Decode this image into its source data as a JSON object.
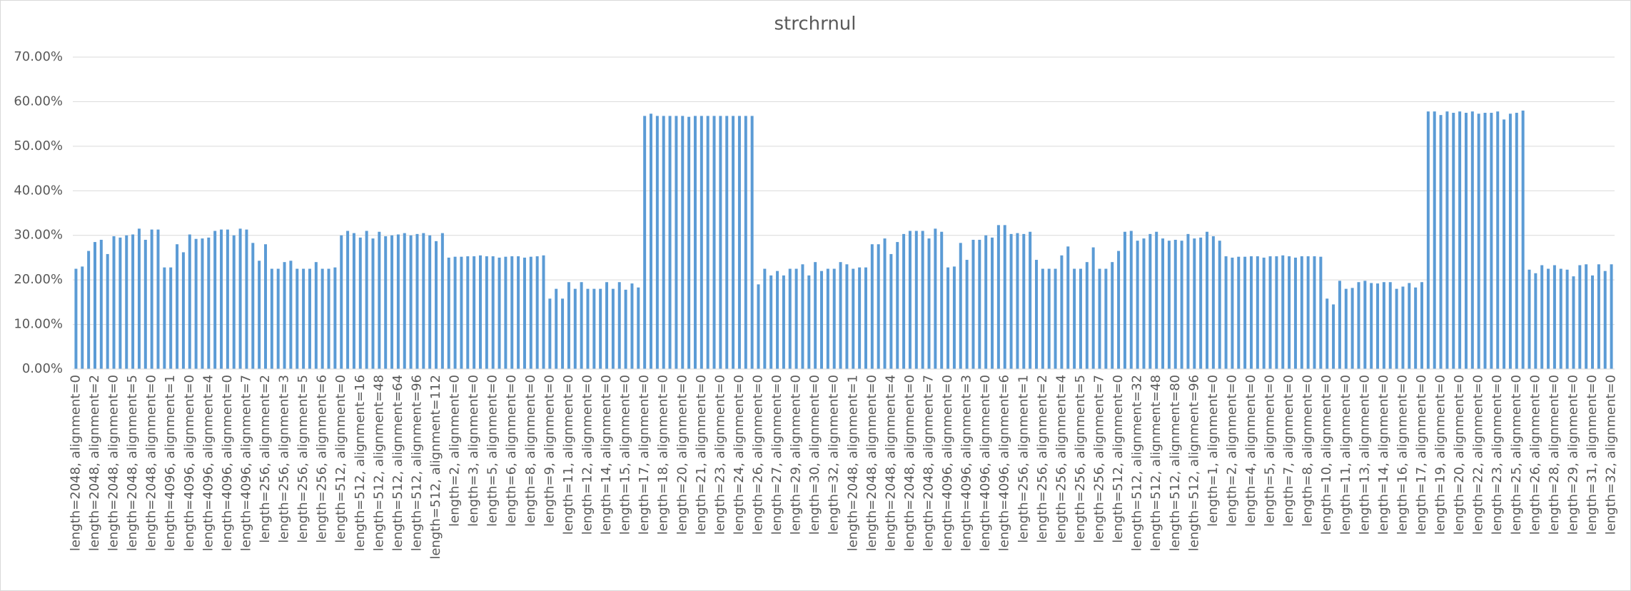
{
  "chart_data": {
    "type": "bar",
    "title": "strchrnul",
    "color": "#5b9bd5",
    "grid": true,
    "ylim": [
      0,
      70
    ],
    "yticks": [
      {
        "value": 0,
        "label": "0.00%"
      },
      {
        "value": 10,
        "label": "10.00%"
      },
      {
        "value": 20,
        "label": "20.00%"
      },
      {
        "value": 30,
        "label": "30.00%"
      },
      {
        "value": 40,
        "label": "40.00%"
      },
      {
        "value": 50,
        "label": "50.00%"
      },
      {
        "value": 60,
        "label": "60.00%"
      },
      {
        "value": 70,
        "label": "70.00%"
      }
    ],
    "categories": [
      "length=2048, alignment=0",
      null,
      null,
      "length=2048, alignment=2",
      null,
      null,
      "length=2048, alignment=0",
      null,
      null,
      "length=2048, alignment=5",
      null,
      null,
      "length=2048, alignment=0",
      null,
      null,
      "length=4096, alignment=1",
      null,
      null,
      "length=4096, alignment=0",
      null,
      null,
      "length=4096, alignment=4",
      null,
      null,
      "length=4096, alignment=0",
      null,
      null,
      "length=4096, alignment=7",
      null,
      null,
      "length=256, alignment=2",
      null,
      null,
      "length=256, alignment=3",
      null,
      null,
      "length=256, alignment=5",
      null,
      null,
      "length=256, alignment=6",
      null,
      null,
      "length=512, alignment=0",
      null,
      null,
      "length=512, alignment=16",
      null,
      null,
      "length=512, alignment=48",
      null,
      null,
      "length=512, alignment=64",
      null,
      null,
      "length=512, alignment=96",
      null,
      null,
      "length=512, alignment=112",
      null,
      null,
      "length=2, alignment=0",
      null,
      null,
      "length=3, alignment=0",
      null,
      null,
      "length=5, alignment=0",
      null,
      null,
      "length=6, alignment=0",
      null,
      null,
      "length=8, alignment=0",
      null,
      null,
      "length=9, alignment=0",
      null,
      null,
      "length=11, alignment=0",
      null,
      null,
      "length=12, alignment=0",
      null,
      null,
      "length=14, alignment=0",
      null,
      null,
      "length=15, alignment=0",
      null,
      null,
      "length=17, alignment=0",
      null,
      null,
      "length=18, alignment=0",
      null,
      null,
      "length=20, alignment=0",
      null,
      null,
      "length=21, alignment=0",
      null,
      null,
      "length=23, alignment=0",
      null,
      null,
      "length=24, alignment=0",
      null,
      null,
      "length=26, alignment=0",
      null,
      null,
      "length=27, alignment=0",
      null,
      null,
      "length=29, alignment=0",
      null,
      null,
      "length=30, alignment=0",
      null,
      null,
      "length=32, alignment=0",
      null,
      null,
      "length=2048, alignment=1",
      null,
      null,
      "length=2048, alignment=0",
      null,
      null,
      "length=2048, alignment=4",
      null,
      null,
      "length=2048, alignment=0",
      null,
      null,
      "length=2048, alignment=7",
      null,
      null,
      "length=4096, alignment=0",
      null,
      null,
      "length=4096, alignment=3",
      null,
      null,
      "length=4096, alignment=0",
      null,
      null,
      "length=4096, alignment=6",
      null,
      null,
      "length=256, alignment=1",
      null,
      null,
      "length=256, alignment=2",
      null,
      null,
      "length=256, alignment=4",
      null,
      null,
      "length=256, alignment=5",
      null,
      null,
      "length=256, alignment=7",
      null,
      null,
      "length=512, alignment=0",
      null,
      null,
      "length=512, alignment=32",
      null,
      null,
      "length=512, alignment=48",
      null,
      null,
      "length=512, alignment=80",
      null,
      null,
      "length=512, alignment=96",
      null,
      null,
      "length=1, alignment=0",
      null,
      null,
      "length=2, alignment=0",
      null,
      null,
      "length=4, alignment=0",
      null,
      null,
      "length=5, alignment=0",
      null,
      null,
      "length=7, alignment=0",
      null,
      null,
      "length=8, alignment=0",
      null,
      null,
      "length=10, alignment=0",
      null,
      null,
      "length=11, alignment=0",
      null,
      null,
      "length=13, alignment=0",
      null,
      null,
      "length=14, alignment=0",
      null,
      null,
      "length=16, alignment=0",
      null,
      null,
      "length=17, alignment=0",
      null,
      null,
      "length=19, alignment=0",
      null,
      null,
      "length=20, alignment=0",
      null,
      null,
      "length=22, alignment=0",
      null,
      null,
      "length=23, alignment=0",
      null,
      null,
      "length=25, alignment=0",
      null,
      null,
      "length=26, alignment=0",
      null,
      null,
      "length=28, alignment=0",
      null,
      null,
      "length=29, alignment=0",
      null,
      null,
      "length=31, alignment=0",
      null,
      null,
      "length=32, alignment=0"
    ],
    "values": [
      22.5,
      23,
      26.5,
      28.5,
      29,
      25.8,
      29.8,
      29.5,
      30,
      30.2,
      31.5,
      29,
      31.3,
      31.3,
      22.8,
      22.8,
      28,
      26.2,
      30.2,
      29.2,
      29.3,
      29.5,
      31,
      31.3,
      31.3,
      30,
      31.5,
      31.3,
      28.3,
      24.3,
      28,
      22.5,
      22.5,
      24,
      24.3,
      22.5,
      22.5,
      22.5,
      24,
      22.5,
      22.5,
      22.8,
      30,
      31,
      30.5,
      29.5,
      31,
      29.3,
      30.8,
      29.8,
      30,
      30.2,
      30.5,
      30,
      30.3,
      30.5,
      30,
      28.7,
      30.5,
      25,
      25.2,
      25.2,
      25.3,
      25.3,
      25.5,
      25.3,
      25.3,
      25,
      25.2,
      25.3,
      25.3,
      25,
      25.2,
      25.3,
      25.5,
      15.8,
      18,
      15.8,
      19.5,
      18,
      19.5,
      18,
      18,
      18,
      19.5,
      18,
      19.5,
      17.8,
      19.2,
      18.3,
      56.8,
      57.3,
      56.8,
      56.8,
      56.8,
      56.8,
      56.8,
      56.6,
      56.8,
      56.8,
      56.8,
      56.8,
      56.8,
      56.8,
      56.8,
      56.8,
      56.8,
      56.8,
      19,
      22.5,
      21,
      22,
      21,
      22.5,
      22.5,
      23.5,
      21,
      24,
      22,
      22.5,
      22.5,
      24,
      23.5,
      22.5,
      22.8,
      22.8,
      28,
      28,
      29.3,
      25.8,
      28.5,
      30.3,
      31,
      31,
      31,
      29.3,
      31.5,
      30.8,
      22.8,
      23,
      28.3,
      24.5,
      29,
      29,
      30,
      29.5,
      32.3,
      32.3,
      30.3,
      30.5,
      30.3,
      30.8,
      24.5,
      22.5,
      22.5,
      22.5,
      25.5,
      27.5,
      22.5,
      22.5,
      24,
      27.3,
      22.5,
      22.5,
      24,
      26.5,
      30.8,
      31,
      28.8,
      29.3,
      30.3,
      30.8,
      29.3,
      28.8,
      29,
      28.8,
      30.3,
      29.3,
      29.5,
      30.8,
      29.8,
      28.8,
      25.3,
      25,
      25.2,
      25.2,
      25.3,
      25.3,
      25,
      25.3,
      25.3,
      25.5,
      25.3,
      25,
      25.3,
      25.3,
      25.3,
      25.2,
      15.8,
      14.5,
      19.8,
      18,
      18.2,
      19.5,
      19.8,
      19.3,
      19.2,
      19.5,
      19.5,
      18,
      18.5,
      19.3,
      18.3,
      19.5,
      57.8,
      57.8,
      57,
      57.8,
      57.5,
      57.8,
      57.5,
      57.8,
      57.3,
      57.5,
      57.5,
      57.8,
      56,
      57.3,
      57.5,
      58,
      22.3,
      21.5,
      23.3,
      22.5,
      23.3,
      22.5,
      22.3,
      20.8,
      23.3,
      23.5,
      21,
      23.5,
      22,
      23.5
    ]
  }
}
